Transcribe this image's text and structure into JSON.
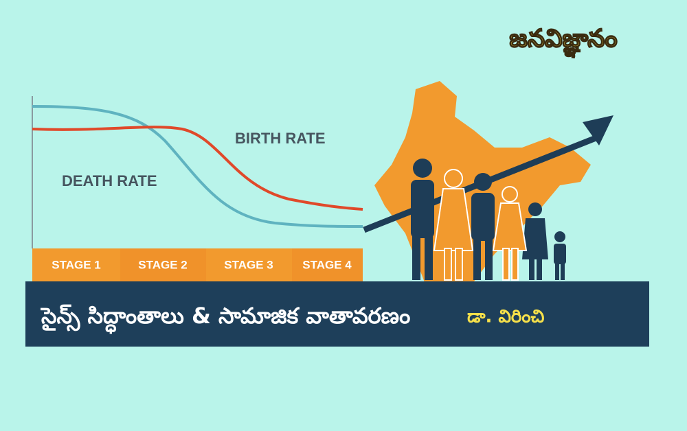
{
  "brand": "జనవిజ్ఞానం",
  "graphic": {
    "birth_label": "BIRTH RATE",
    "death_label": "DEATH RATE",
    "stages": [
      "STAGE 1",
      "STAGE 2",
      "STAGE 3",
      "STAGE 4"
    ]
  },
  "banner": {
    "title": "సైన్స్ సిద్ధాంతాలు & సామాజిక వాతావరణం",
    "author": "డా. విరించి"
  }
}
